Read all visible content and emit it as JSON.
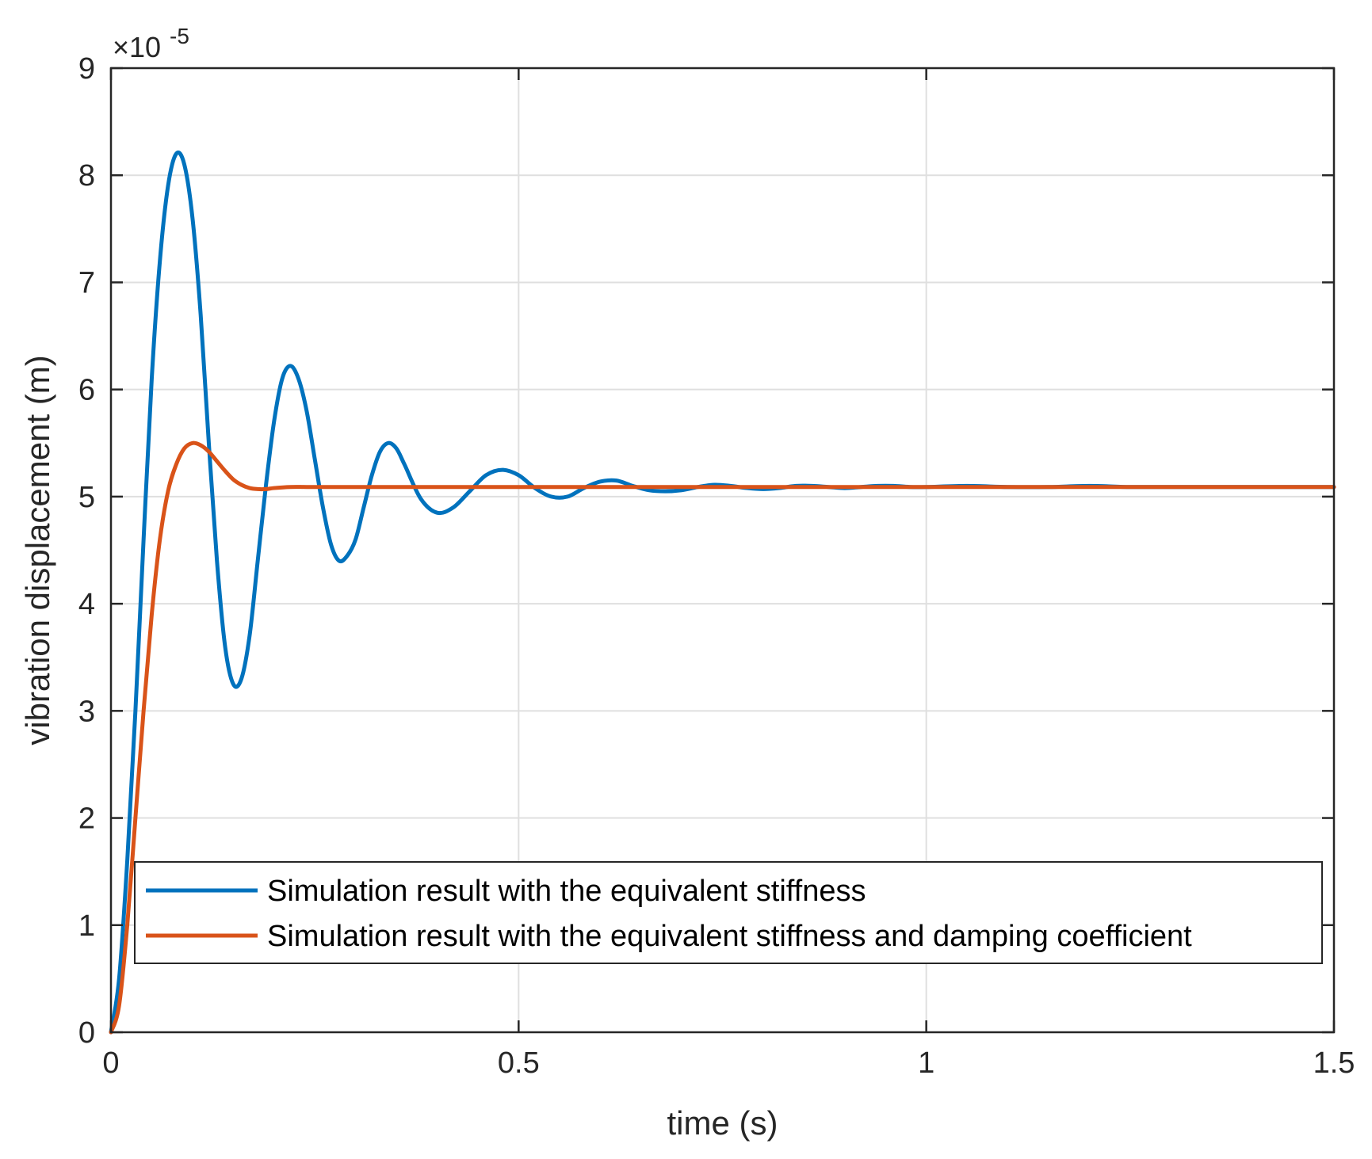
{
  "chart_data": {
    "type": "line",
    "title": "",
    "xlabel": "time (s)",
    "ylabel": "vibration displacement (m)",
    "xlim": [
      0,
      1.5
    ],
    "ylim": [
      0,
      9
    ],
    "xticks": [
      0,
      0.5,
      1,
      1.5
    ],
    "xtick_labels": [
      "0",
      "0.5",
      "1",
      "1.5"
    ],
    "yticks": [
      0,
      1,
      2,
      3,
      4,
      5,
      6,
      7,
      8,
      9
    ],
    "ytick_labels": [
      "0",
      "1",
      "2",
      "3",
      "4",
      "5",
      "6",
      "7",
      "8",
      "9"
    ],
    "y_multiplier": {
      "base": "×10",
      "exponent": "-5"
    },
    "grid": true,
    "legend_position": "bottom-right",
    "series": [
      {
        "name": "Simulation result with the equivalent stiffness",
        "color": "#0072BD",
        "x": [
          0,
          0.01,
          0.02,
          0.03,
          0.04,
          0.05,
          0.06,
          0.07,
          0.08,
          0.09,
          0.1,
          0.11,
          0.12,
          0.13,
          0.14,
          0.15,
          0.16,
          0.17,
          0.18,
          0.19,
          0.2,
          0.21,
          0.22,
          0.23,
          0.24,
          0.25,
          0.26,
          0.27,
          0.28,
          0.29,
          0.3,
          0.31,
          0.32,
          0.33,
          0.34,
          0.35,
          0.36,
          0.38,
          0.4,
          0.42,
          0.44,
          0.46,
          0.48,
          0.5,
          0.52,
          0.54,
          0.56,
          0.58,
          0.6,
          0.62,
          0.64,
          0.66,
          0.68,
          0.7,
          0.72,
          0.74,
          0.76,
          0.78,
          0.8,
          0.82,
          0.84,
          0.86,
          0.88,
          0.9,
          0.92,
          0.94,
          0.96,
          0.98,
          1.0,
          1.05,
          1.1,
          1.15,
          1.2,
          1.25,
          1.3,
          1.35,
          1.4,
          1.45,
          1.5
        ],
        "values": [
          0,
          0.5,
          1.6,
          3.0,
          4.6,
          6.1,
          7.2,
          7.9,
          8.2,
          8.1,
          7.6,
          6.7,
          5.5,
          4.4,
          3.6,
          3.25,
          3.3,
          3.7,
          4.4,
          5.1,
          5.7,
          6.1,
          6.22,
          6.1,
          5.8,
          5.35,
          4.9,
          4.55,
          4.4,
          4.45,
          4.6,
          4.9,
          5.2,
          5.42,
          5.5,
          5.45,
          5.3,
          4.98,
          4.85,
          4.9,
          5.05,
          5.2,
          5.25,
          5.2,
          5.08,
          5.0,
          5.0,
          5.08,
          5.14,
          5.15,
          5.1,
          5.06,
          5.05,
          5.06,
          5.09,
          5.11,
          5.1,
          5.08,
          5.07,
          5.08,
          5.1,
          5.1,
          5.09,
          5.08,
          5.09,
          5.1,
          5.1,
          5.09,
          5.09,
          5.1,
          5.09,
          5.09,
          5.1,
          5.09,
          5.09,
          5.09,
          5.09,
          5.09,
          5.09
        ]
      },
      {
        "name": "Simulation result with the equivalent stiffness and damping coefficient",
        "color": "#D95319",
        "x": [
          0,
          0.01,
          0.02,
          0.03,
          0.04,
          0.05,
          0.06,
          0.07,
          0.08,
          0.09,
          0.1,
          0.11,
          0.12,
          0.13,
          0.14,
          0.15,
          0.16,
          0.17,
          0.18,
          0.19,
          0.2,
          0.22,
          0.24,
          0.26,
          0.28,
          0.3,
          0.35,
          0.4,
          0.5,
          0.6,
          0.8,
          1.0,
          1.2,
          1.5
        ],
        "values": [
          0,
          0.25,
          1.0,
          2.0,
          3.0,
          3.9,
          4.6,
          5.05,
          5.3,
          5.45,
          5.5,
          5.48,
          5.42,
          5.33,
          5.24,
          5.16,
          5.11,
          5.08,
          5.07,
          5.07,
          5.08,
          5.09,
          5.09,
          5.09,
          5.09,
          5.09,
          5.09,
          5.09,
          5.09,
          5.09,
          5.09,
          5.09,
          5.09,
          5.09
        ]
      }
    ]
  }
}
